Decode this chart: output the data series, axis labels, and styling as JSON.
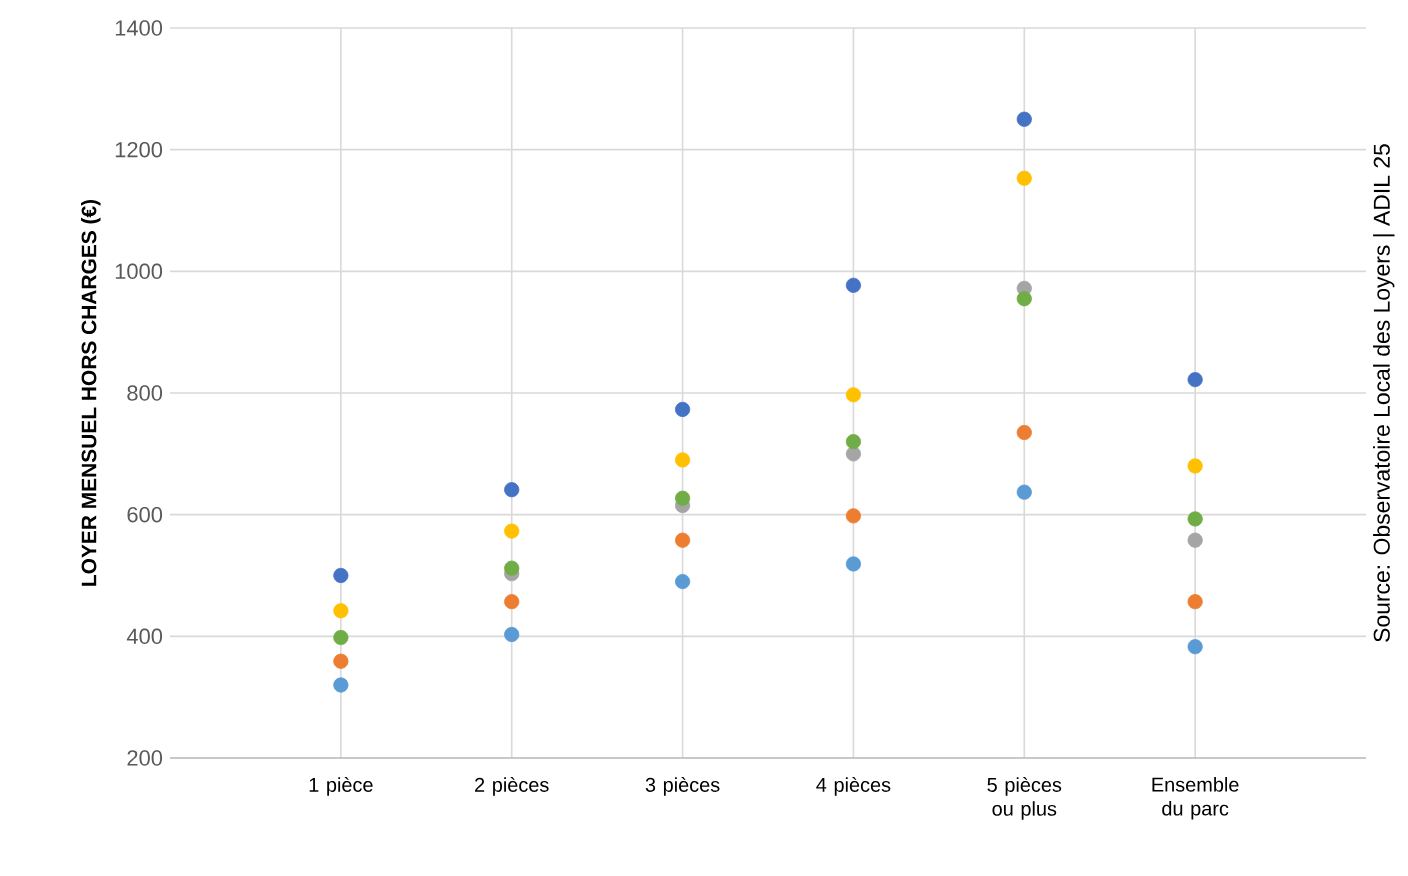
{
  "chart_data": {
    "type": "scatter",
    "ylabel": "LOYER MENSUEL HORS CHARGES (€)",
    "categories": [
      "1 pièce",
      "2 pièces",
      "3 pièces",
      "4 pièces",
      "5 pièces ou plus",
      "Ensemble du parc"
    ],
    "series": [
      {
        "color": "#5b9bd5",
        "values": [
          320,
          403,
          490,
          519,
          637,
          383
        ]
      },
      {
        "color": "#ed7d31",
        "values": [
          359,
          457,
          558,
          598,
          735,
          457
        ]
      },
      {
        "color": "#a5a5a5",
        "values": [
          null,
          503,
          615,
          700,
          972,
          558
        ]
      },
      {
        "color": "#70ad47",
        "values": [
          398,
          512,
          627,
          720,
          955,
          593
        ]
      },
      {
        "color": "#ffc000",
        "values": [
          442,
          573,
          690,
          797,
          1153,
          680
        ]
      },
      {
        "color": "#4472c4",
        "values": [
          500,
          641,
          773,
          977,
          1250,
          822
        ]
      }
    ],
    "ylim": [
      200,
      1400
    ],
    "yticks": [
      200,
      400,
      600,
      800,
      1000,
      1200,
      1400
    ],
    "grid": true,
    "marker": "circle",
    "annotations": [
      "Source: Observatoire Local des Loyers | ADIL 25"
    ]
  }
}
